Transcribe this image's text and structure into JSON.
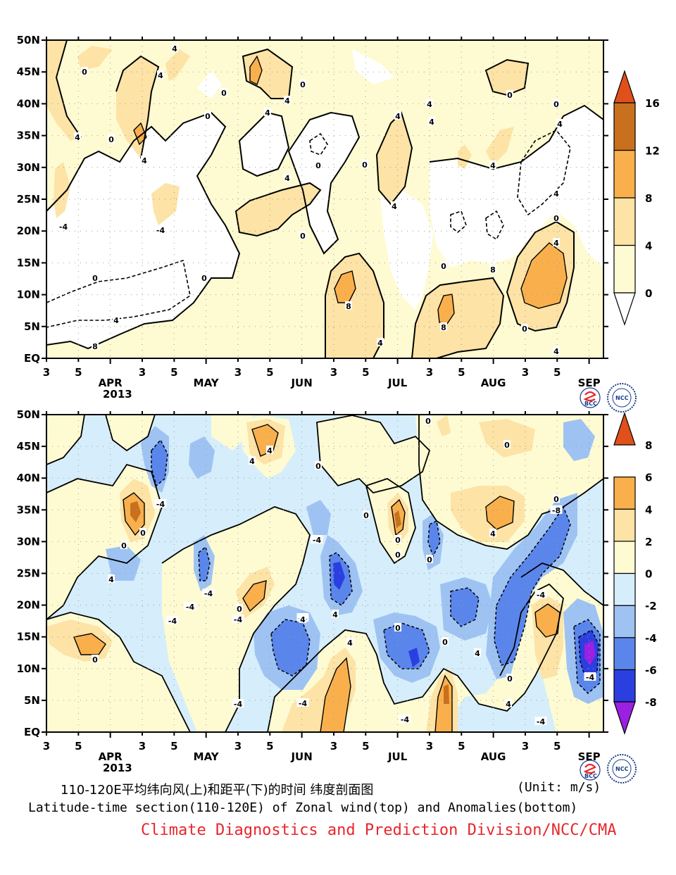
{
  "caption": {
    "zh": "110-120E平均纬向风(上)和距平(下)的时间 纬度剖面图",
    "unit": "(Unit: m/s)",
    "en": "Latitude-time section(110-120E) of Zonal wind(top) and Anomalies(bottom)",
    "credit": "Climate Diagnostics and Prediction Division/NCC/CMA"
  },
  "logos": {
    "left": "BCC",
    "right": "NCC"
  },
  "colors": {
    "white": "#ffffff",
    "pale_yellow": "#fefbd2",
    "light_orange": "#fde3a6",
    "orange": "#f9b04c",
    "dark_orange": "#f08a2c",
    "brown_orange": "#c9701e",
    "red_orange": "#e0501a",
    "light_blue": "#d6eefb",
    "mid_blue": "#9ec3f3",
    "blue": "#5a86ec",
    "dark_blue": "#2b3fe0",
    "violet": "#9a20e2",
    "credit_red": "#e8262b"
  },
  "chart_data": [
    {
      "type": "heatmap",
      "name_hint": "top",
      "title": "",
      "xlabel": "",
      "ylabel": "",
      "x_tick_labels": [
        "3",
        "5",
        "APR",
        "3",
        "5",
        "MAY",
        "3",
        "5",
        "JUN",
        "3",
        "5",
        "JUL",
        "3",
        "5",
        "AUG",
        "3",
        "5",
        "SEP"
      ],
      "x_year_label": "2013",
      "y_tick_labels": [
        "EQ",
        "5N",
        "10N",
        "15N",
        "20N",
        "25N",
        "30N",
        "35N",
        "40N",
        "45N",
        "50N"
      ],
      "ylim": [
        0,
        50
      ],
      "colorbar": {
        "levels": [
          0,
          4,
          8,
          12,
          16
        ],
        "labels": [
          "0",
          "4",
          "8",
          "12",
          "16"
        ]
      },
      "contour_labels": [
        "4",
        "0",
        "4",
        "0",
        "4",
        "4",
        "0",
        "0",
        "4",
        "0",
        "4",
        "0",
        "0",
        "4",
        "4",
        "4",
        "4",
        "4",
        "0",
        "0",
        "4",
        "0",
        "-4",
        "-4",
        "0",
        "4",
        "0",
        "8",
        "8",
        "4",
        "0",
        "4",
        "8",
        "4",
        "0",
        "4",
        "8",
        "4",
        "0"
      ]
    },
    {
      "type": "heatmap",
      "name_hint": "bottom",
      "title": "",
      "xlabel": "",
      "ylabel": "",
      "x_tick_labels": [
        "3",
        "5",
        "APR",
        "3",
        "5",
        "MAY",
        "3",
        "5",
        "JUN",
        "3",
        "5",
        "JUL",
        "3",
        "5",
        "AUG",
        "3",
        "5",
        "SEP"
      ],
      "x_year_label": "2013",
      "y_tick_labels": [
        "EQ",
        "5N",
        "10N",
        "15N",
        "20N",
        "25N",
        "30N",
        "35N",
        "40N",
        "45N",
        "50N"
      ],
      "ylim": [
        0,
        50
      ],
      "colorbar": {
        "levels": [
          -8,
          -6,
          -4,
          -2,
          0,
          2,
          4,
          6,
          8
        ],
        "labels": [
          "-8",
          "-6",
          "-4",
          "-2",
          "0",
          "2",
          "4",
          "6",
          "8"
        ]
      },
      "contour_labels": [
        "0",
        "4",
        "0",
        "-4",
        "4",
        "4",
        "0",
        "0",
        "0",
        "0",
        "0",
        "-4",
        "4",
        "0",
        "-4",
        "-4",
        "-4",
        "-4",
        "-4",
        "4",
        "0",
        "4",
        "-4",
        "0",
        "4",
        "0",
        "-4",
        "-4",
        "-4",
        "-4",
        "4",
        "-4",
        "-8",
        "0",
        "0",
        "0",
        "4",
        "0"
      ]
    }
  ]
}
